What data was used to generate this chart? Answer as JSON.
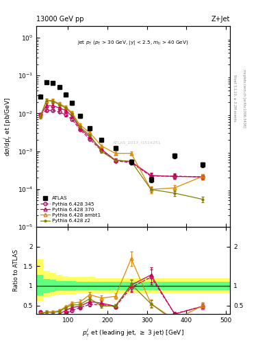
{
  "title_left": "13000 GeV pp",
  "title_right": "Z+Jet",
  "watermark": "ATLAS_2017_I1514251",
  "ylabel_main": "d#sigma/dp$_T^j$ et [pb/GeV]",
  "ylabel_ratio": "Ratio to ATLAS",
  "xlabel": "p$_T^j$ et (leading jet, #geq 3 jet) [GeV]",
  "ylim_main": [
    1e-05,
    2.0
  ],
  "ylim_ratio": [
    0.28,
    2.5
  ],
  "xlim": [
    20,
    510
  ],
  "atlas_x": [
    30,
    46,
    62,
    78,
    94,
    110,
    130,
    155,
    185,
    220,
    260,
    310,
    370,
    440
  ],
  "atlas_y": [
    0.028,
    0.066,
    0.065,
    0.049,
    0.032,
    0.019,
    0.0085,
    0.004,
    0.002,
    0.0012,
    0.00052,
    0.00018,
    0.00076,
    0.00044
  ],
  "atlas_yerr": [
    0.003,
    0.005,
    0.005,
    0.004,
    0.003,
    0.002,
    0.0009,
    0.0004,
    0.0002,
    0.00015,
    7e-05,
    3e-05,
    0.0001,
    6e-05
  ],
  "p345_x": [
    30,
    46,
    62,
    78,
    94,
    110,
    130,
    155,
    185,
    220,
    260,
    310,
    370,
    440
  ],
  "p345_y": [
    0.0095,
    0.012,
    0.012,
    0.011,
    0.0092,
    0.007,
    0.0038,
    0.0021,
    0.00105,
    0.00056,
    0.0005,
    0.00022,
    0.00022,
    0.00021
  ],
  "p345_yerr": [
    0.0008,
    0.001,
    0.001,
    0.001,
    0.0008,
    0.0005,
    0.0003,
    0.0002,
    9e-05,
    5.5e-05,
    6e-05,
    3.5e-05,
    3.5e-05,
    3e-05
  ],
  "p370_x": [
    30,
    46,
    62,
    78,
    94,
    110,
    130,
    155,
    185,
    220,
    260,
    310,
    370,
    440
  ],
  "p370_y": [
    0.009,
    0.016,
    0.016,
    0.014,
    0.012,
    0.0085,
    0.0041,
    0.0024,
    0.00112,
    0.00058,
    0.00053,
    0.00023,
    0.000215,
    0.00021
  ],
  "p370_yerr": [
    0.0009,
    0.002,
    0.002,
    0.001,
    0.001,
    0.0007,
    0.0004,
    0.0002,
    0.0001,
    5.8e-05,
    7e-05,
    3.5e-05,
    3.2e-05,
    3e-05
  ],
  "pambt_x": [
    30,
    46,
    62,
    78,
    94,
    110,
    130,
    155,
    185,
    220,
    260,
    310,
    370,
    440
  ],
  "pambt_y": [
    0.0085,
    0.022,
    0.022,
    0.018,
    0.015,
    0.0105,
    0.005,
    0.0031,
    0.00138,
    0.00088,
    0.00088,
    9.8e-05,
    0.000108,
    0.000215
  ],
  "pambt_yerr": [
    0.0009,
    0.002,
    0.002,
    0.002,
    0.001,
    0.0009,
    0.0005,
    0.0003,
    0.00012,
    8.8e-05,
    9.5e-05,
    1.95e-05,
    2.15e-05,
    3.8e-05
  ],
  "pz2_x": [
    30,
    46,
    62,
    78,
    94,
    110,
    130,
    155,
    185,
    220,
    260,
    310,
    370,
    440
  ],
  "pz2_y": [
    0.0082,
    0.022,
    0.021,
    0.017,
    0.014,
    0.0098,
    0.0044,
    0.0027,
    0.00098,
    0.00058,
    0.00054,
    9.8e-05,
    7.8e-05,
    5.4e-05
  ],
  "pz2_yerr": [
    0.0008,
    0.002,
    0.002,
    0.002,
    0.001,
    0.0008,
    0.0004,
    0.0002,
    8.8e-05,
    5.8e-05,
    6e-05,
    1.45e-05,
    1.18e-05,
    9.8e-06
  ],
  "color_atlas": "#000000",
  "color_p345": "#c0006a",
  "color_p370": "#cc0055",
  "color_pambt": "#dd8800",
  "color_pz2": "#808000",
  "band_x_edges": [
    20,
    38,
    54,
    70,
    86,
    102,
    120,
    142,
    170,
    202,
    240,
    285,
    340,
    405,
    510
  ],
  "band_yellow_top": [
    1.68,
    1.38,
    1.33,
    1.28,
    1.25,
    1.23,
    1.22,
    1.22,
    1.2,
    1.2,
    1.2,
    1.2,
    1.2,
    1.2
  ],
  "band_yellow_bot": [
    0.62,
    0.72,
    0.75,
    0.77,
    0.78,
    0.79,
    0.8,
    0.8,
    0.8,
    0.8,
    0.8,
    0.8,
    0.8,
    0.8
  ],
  "band_green_top": [
    1.28,
    1.18,
    1.15,
    1.13,
    1.12,
    1.12,
    1.11,
    1.11,
    1.1,
    1.1,
    1.1,
    1.1,
    1.1,
    1.1
  ],
  "band_green_bot": [
    0.75,
    0.83,
    0.86,
    0.87,
    0.88,
    0.88,
    0.89,
    0.89,
    0.9,
    0.9,
    0.9,
    0.9,
    0.9,
    0.9
  ]
}
